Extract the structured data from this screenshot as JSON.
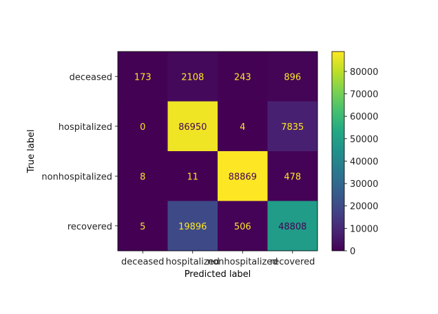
{
  "chart_data": {
    "type": "heatmap",
    "title": "",
    "xlabel": "Predicted label",
    "ylabel": "True label",
    "x_categories": [
      "deceased",
      "hospitalized",
      "nonhospitalized",
      "recovered"
    ],
    "y_categories": [
      "deceased",
      "hospitalized",
      "nonhospitalized",
      "recovered"
    ],
    "values": [
      [
        173,
        2108,
        243,
        896
      ],
      [
        0,
        86950,
        4,
        7835
      ],
      [
        8,
        11,
        88869,
        478
      ],
      [
        5,
        19896,
        506,
        48808
      ]
    ],
    "colormap": "viridis",
    "vmin": 0,
    "vmax": 88869,
    "colorbar_ticks": [
      0,
      10000,
      20000,
      30000,
      40000,
      50000,
      60000,
      70000,
      80000
    ],
    "text_color_dark": "#440154",
    "text_color_light": "#fde725"
  }
}
